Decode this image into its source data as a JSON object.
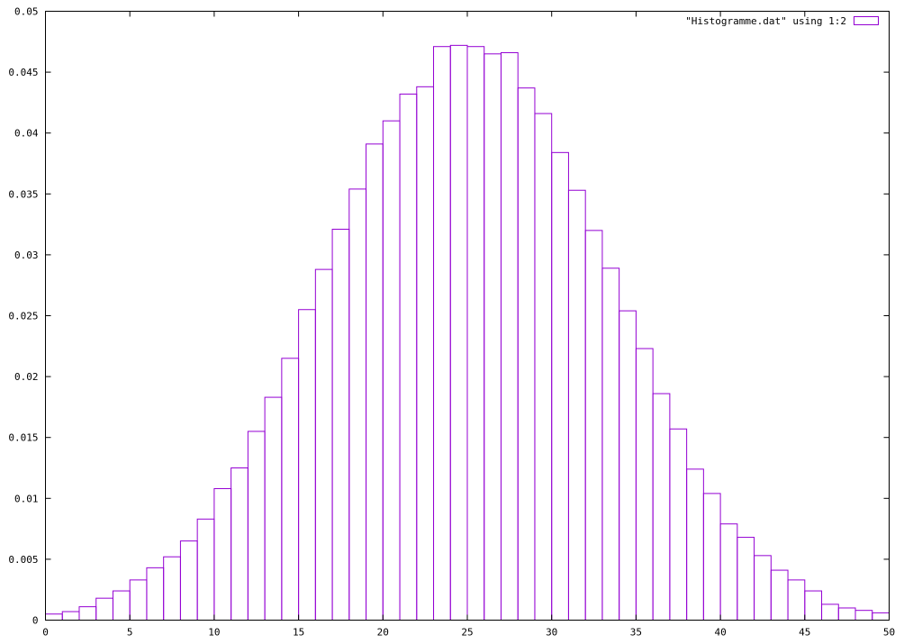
{
  "chart_data": {
    "type": "bar",
    "title": "",
    "xlabel": "",
    "ylabel": "",
    "xlim": [
      0,
      50
    ],
    "ylim": [
      0,
      0.05
    ],
    "grid": false,
    "legend_position": "top-right",
    "colors": {
      "series": "#9400d3",
      "axes": "#000000",
      "background": "#ffffff"
    },
    "x_ticks": [
      {
        "value": 0,
        "label": "0"
      },
      {
        "value": 5,
        "label": "5"
      },
      {
        "value": 10,
        "label": "10"
      },
      {
        "value": 15,
        "label": "15"
      },
      {
        "value": 20,
        "label": "20"
      },
      {
        "value": 25,
        "label": "25"
      },
      {
        "value": 30,
        "label": "30"
      },
      {
        "value": 35,
        "label": "35"
      },
      {
        "value": 40,
        "label": "40"
      },
      {
        "value": 45,
        "label": "45"
      },
      {
        "value": 50,
        "label": "50"
      }
    ],
    "y_ticks": [
      {
        "value": 0,
        "label": "0"
      },
      {
        "value": 0.005,
        "label": "0.005"
      },
      {
        "value": 0.01,
        "label": "0.01"
      },
      {
        "value": 0.015,
        "label": "0.015"
      },
      {
        "value": 0.02,
        "label": "0.02"
      },
      {
        "value": 0.025,
        "label": "0.025"
      },
      {
        "value": 0.03,
        "label": "0.03"
      },
      {
        "value": 0.035,
        "label": "0.035"
      },
      {
        "value": 0.04,
        "label": "0.04"
      },
      {
        "value": 0.045,
        "label": "0.045"
      },
      {
        "value": 0.05,
        "label": "0.05"
      }
    ],
    "bin_width": 1,
    "series": [
      {
        "name": "\"Histogramme.dat\" using 1:2",
        "x": [
          0,
          1,
          2,
          3,
          4,
          5,
          6,
          7,
          8,
          9,
          10,
          11,
          12,
          13,
          14,
          15,
          16,
          17,
          18,
          19,
          20,
          21,
          22,
          23,
          24,
          25,
          26,
          27,
          28,
          29,
          30,
          31,
          32,
          33,
          34,
          35,
          36,
          37,
          38,
          39,
          40,
          41,
          42,
          43,
          44,
          45,
          46,
          47,
          48,
          49
        ],
        "values": [
          0.0005,
          0.0007,
          0.0011,
          0.0018,
          0.0024,
          0.0033,
          0.0043,
          0.0052,
          0.0065,
          0.0083,
          0.0108,
          0.0125,
          0.0155,
          0.0183,
          0.0215,
          0.0255,
          0.0288,
          0.0321,
          0.0354,
          0.0391,
          0.041,
          0.0432,
          0.0438,
          0.0471,
          0.0472,
          0.0471,
          0.0465,
          0.0466,
          0.0437,
          0.0416,
          0.0384,
          0.0353,
          0.032,
          0.0289,
          0.0254,
          0.0223,
          0.0186,
          0.0157,
          0.0124,
          0.0104,
          0.0079,
          0.0068,
          0.0053,
          0.0041,
          0.0033,
          0.0024,
          0.0013,
          0.001,
          0.0008,
          0.0006
        ]
      }
    ]
  }
}
